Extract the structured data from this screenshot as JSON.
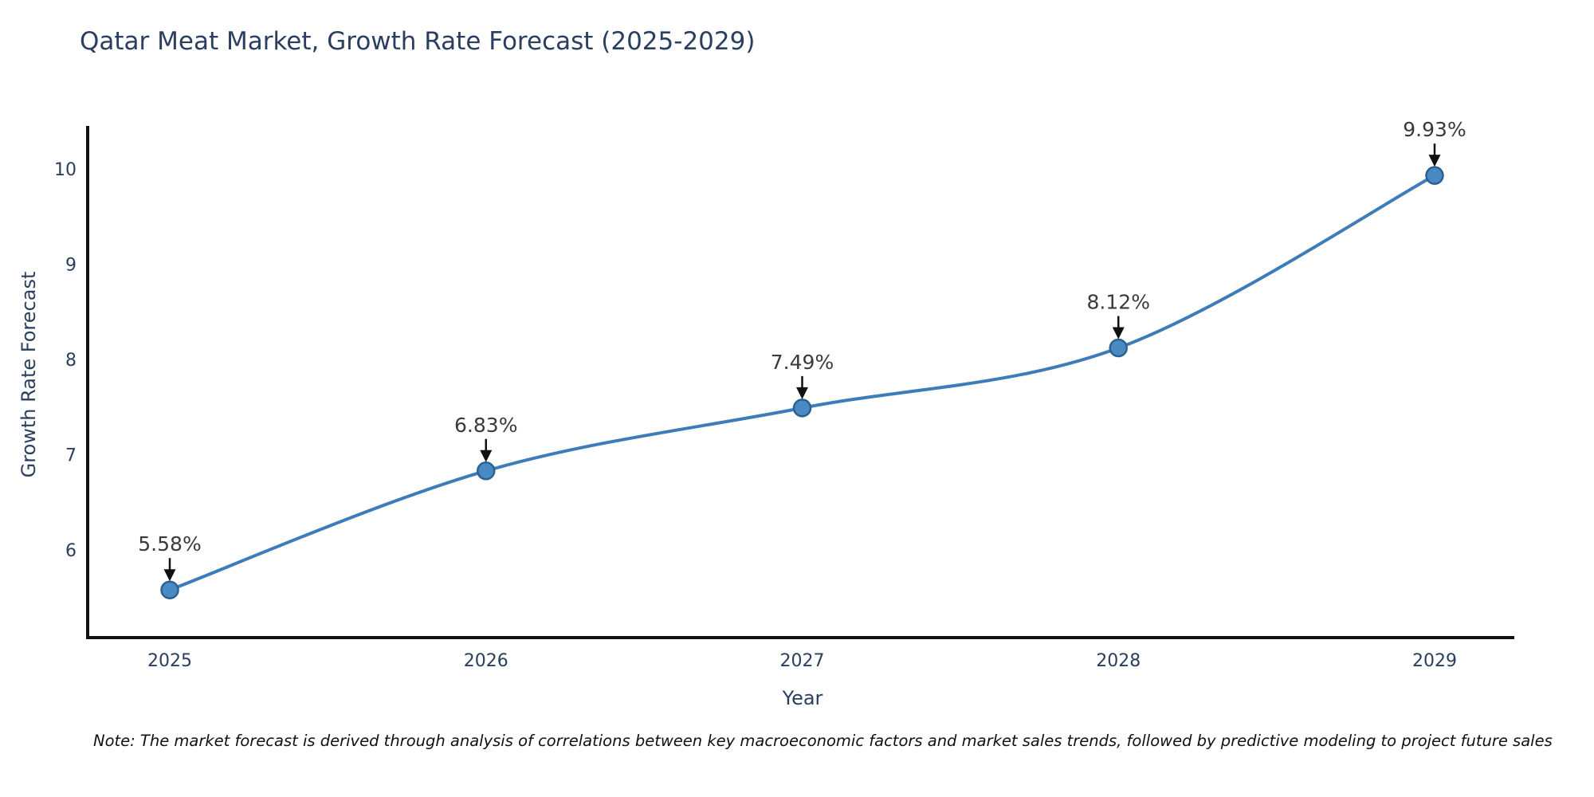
{
  "note": "Note: The market forecast is derived through analysis of correlations between key macroeconomic factors and market sales trends, followed by predictive modeling to project future sales",
  "chart_data": {
    "type": "line",
    "title": "Qatar Meat Market, Growth Rate Forecast (2025-2029)",
    "xlabel": "Year",
    "ylabel": "Growth Rate Forecast",
    "x": [
      "2025",
      "2026",
      "2027",
      "2028",
      "2029"
    ],
    "values": [
      5.58,
      6.83,
      7.49,
      8.12,
      9.93
    ],
    "point_labels": [
      "5.58%",
      "6.83%",
      "7.49%",
      "8.12%",
      "9.93%"
    ],
    "yticks": [
      6,
      7,
      8,
      9,
      10
    ],
    "ylim": [
      5.08,
      10.45
    ],
    "grid": false,
    "legend": "none",
    "line_shape": "spline",
    "annotation_arrows": "black arrow pointing down at each marker",
    "colors": {
      "line": "#3e7cb9",
      "marker_fill": "#4a8ac4",
      "marker_stroke": "#2b608f",
      "axis": "#111111",
      "axis_text": "#2a3f5f",
      "annotation_text": "#3a3a3a",
      "background": "#ffffff"
    }
  }
}
